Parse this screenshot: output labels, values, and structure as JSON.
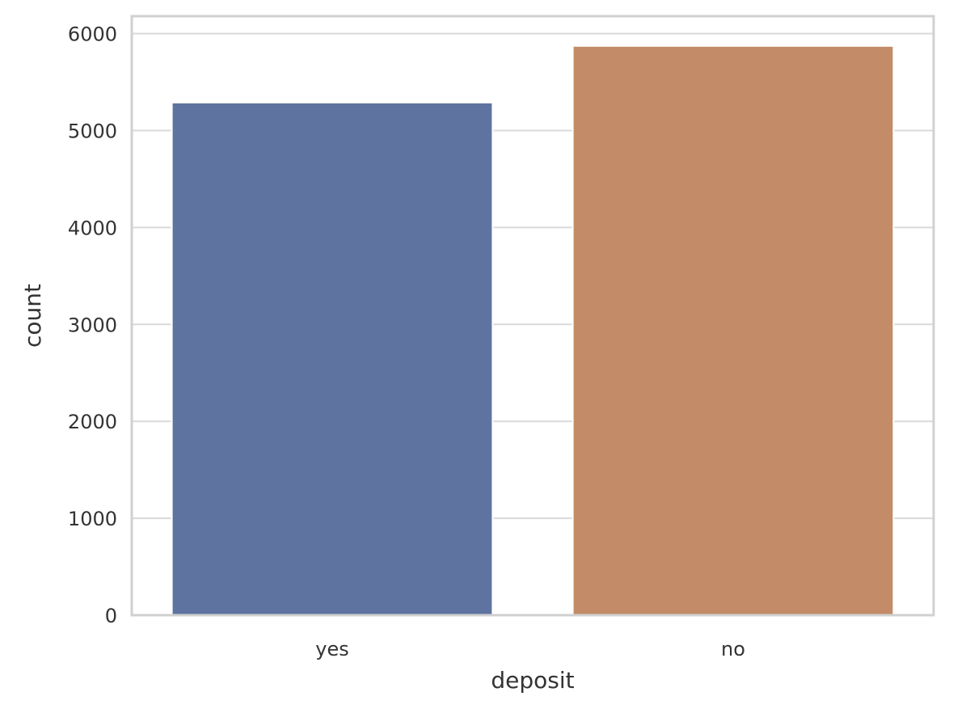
{
  "chart_data": {
    "type": "bar",
    "categories": [
      "yes",
      "no"
    ],
    "values": [
      5289,
      5873
    ],
    "title": "",
    "xlabel": "deposit",
    "ylabel": "count",
    "ylim": [
      0,
      6180
    ],
    "yticks": [
      0,
      1000,
      2000,
      3000,
      4000,
      5000,
      6000
    ],
    "grid": true,
    "colors": [
      "#5f73a0",
      "#c38b67"
    ],
    "grid_color": "#d9d9d9",
    "frame_color": "#d0d0d0"
  }
}
